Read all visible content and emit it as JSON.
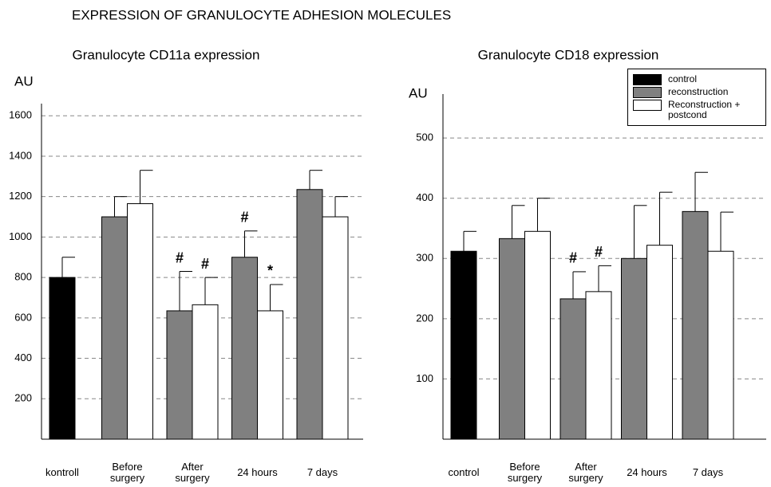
{
  "title": "EXPRESSION OF GRANULOCYTE ADHESION MOLECULES",
  "chart_data": [
    {
      "type": "bar",
      "title": "Granulocyte CD11a expression",
      "y_label": "AU",
      "categories": [
        "kontroll",
        "Before surgery",
        "After surgery",
        "24 hours",
        "7 days"
      ],
      "series": [
        {
          "name": "control",
          "color": "#000000",
          "values": [
            800,
            null,
            null,
            null,
            null
          ],
          "errors": [
            100,
            null,
            null,
            null,
            null
          ],
          "annotations": [
            null,
            null,
            null,
            null,
            null
          ]
        },
        {
          "name": "reconstruction",
          "color": "#808080",
          "values": [
            null,
            1100,
            635,
            900,
            1235
          ],
          "errors": [
            null,
            100,
            195,
            130,
            95
          ],
          "annotations": [
            null,
            null,
            "#",
            "#",
            null
          ]
        },
        {
          "name": "Reconstruction + postcond",
          "color": "#ffffff",
          "values": [
            null,
            1165,
            665,
            635,
            1100
          ],
          "errors": [
            null,
            165,
            135,
            130,
            100
          ],
          "annotations": [
            null,
            null,
            "#",
            "*",
            null
          ]
        }
      ],
      "ylim": [
        0,
        1660
      ],
      "yticks": [
        200,
        400,
        600,
        800,
        1000,
        1200,
        1400,
        1600
      ],
      "grid": true,
      "legend": false
    },
    {
      "type": "bar",
      "title": "Granulocyte CD18 expression",
      "y_label": "AU",
      "categories": [
        "control",
        "Before surgery",
        "After surgery",
        "24 hours",
        "7 days"
      ],
      "series": [
        {
          "name": "control",
          "color": "#000000",
          "values": [
            312,
            null,
            null,
            null,
            null
          ],
          "errors": [
            33,
            null,
            null,
            null,
            null
          ],
          "annotations": [
            null,
            null,
            null,
            null,
            null
          ]
        },
        {
          "name": "reconstruction",
          "color": "#808080",
          "values": [
            null,
            333,
            233,
            300,
            378
          ],
          "errors": [
            null,
            55,
            45,
            88,
            65
          ],
          "annotations": [
            null,
            null,
            "#",
            null,
            null
          ]
        },
        {
          "name": "Reconstruction + postcond",
          "color": "#ffffff",
          "values": [
            null,
            345,
            245,
            322,
            312
          ],
          "errors": [
            null,
            55,
            43,
            88,
            65
          ],
          "annotations": [
            null,
            null,
            "#",
            null,
            null
          ]
        }
      ],
      "ylim": [
        0,
        573
      ],
      "yticks": [
        100,
        200,
        300,
        400,
        500
      ],
      "grid": true,
      "legend": true,
      "legend_position": "upper right"
    }
  ]
}
